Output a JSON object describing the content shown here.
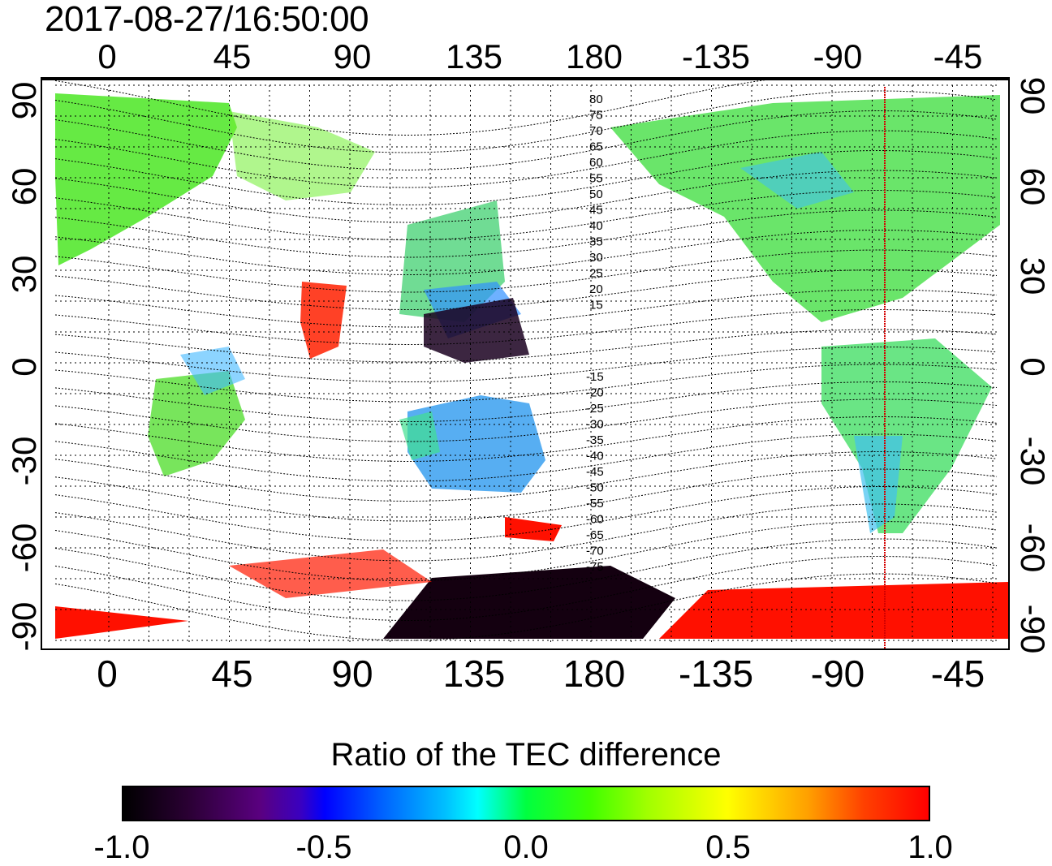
{
  "timestamp": "2017-08-27/16:50:00",
  "longitude_ticks": [
    "0",
    "45",
    "90",
    "135",
    "180",
    "-135",
    "-90",
    "-45"
  ],
  "latitude_ticks": [
    "90",
    "60",
    "30",
    "0",
    "-30",
    "-60",
    "-90"
  ],
  "geomag_labels_north": [
    "80",
    "75",
    "70",
    "65",
    "60",
    "55",
    "50",
    "45",
    "40",
    "35",
    "30",
    "25",
    "20",
    "15"
  ],
  "geomag_labels_south": [
    "-15",
    "-20",
    "-25",
    "-30",
    "-35",
    "-40",
    "-45",
    "-50",
    "-55",
    "-60",
    "-65",
    "-70",
    "-75"
  ],
  "colorbar": {
    "title": "Ratio of the TEC difference",
    "ticks": [
      "-1.0",
      "-0.5",
      "0.0",
      "0.5",
      "1.0"
    ]
  },
  "colors": {
    "positive_max": "#ff0000",
    "zero": "#00ff40",
    "negative_max": "#000000",
    "terminator_line": "#d40000"
  }
}
